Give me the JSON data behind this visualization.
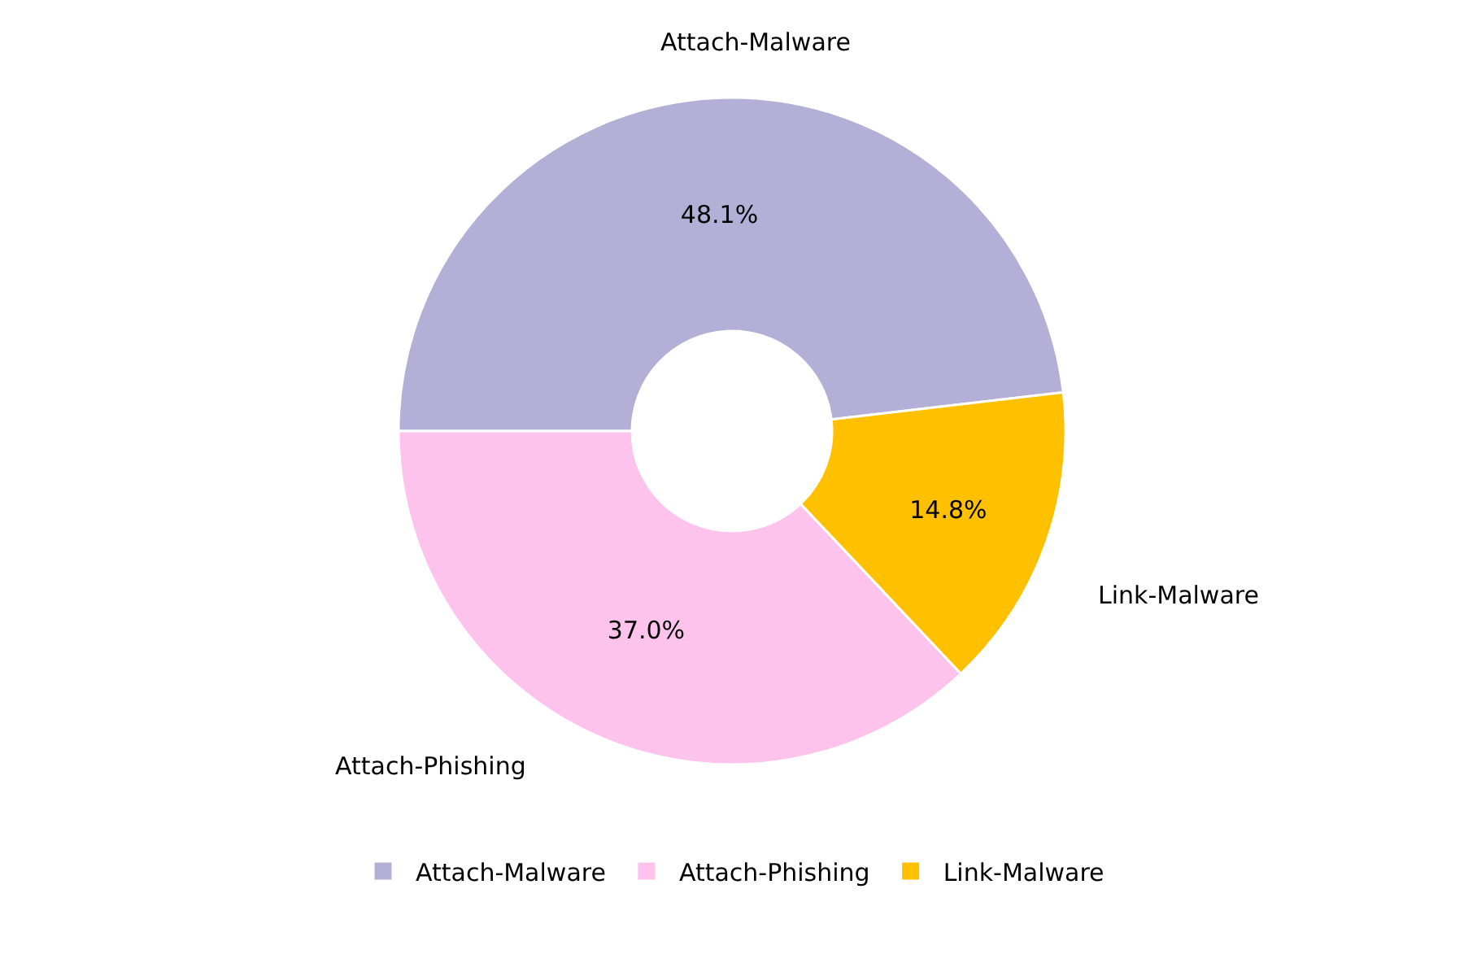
{
  "chart_data": {
    "type": "donut",
    "categories": [
      "Attach-Malware",
      "Attach-Phishing",
      "Link-Malware"
    ],
    "values": [
      48.1,
      37.0,
      14.8
    ],
    "value_labels": [
      "48.1%",
      "37.0%",
      "14.8%"
    ],
    "colors": [
      "#b3afd6",
      "#fdc3ec",
      "#ffc000"
    ],
    "legend": "bottom"
  }
}
